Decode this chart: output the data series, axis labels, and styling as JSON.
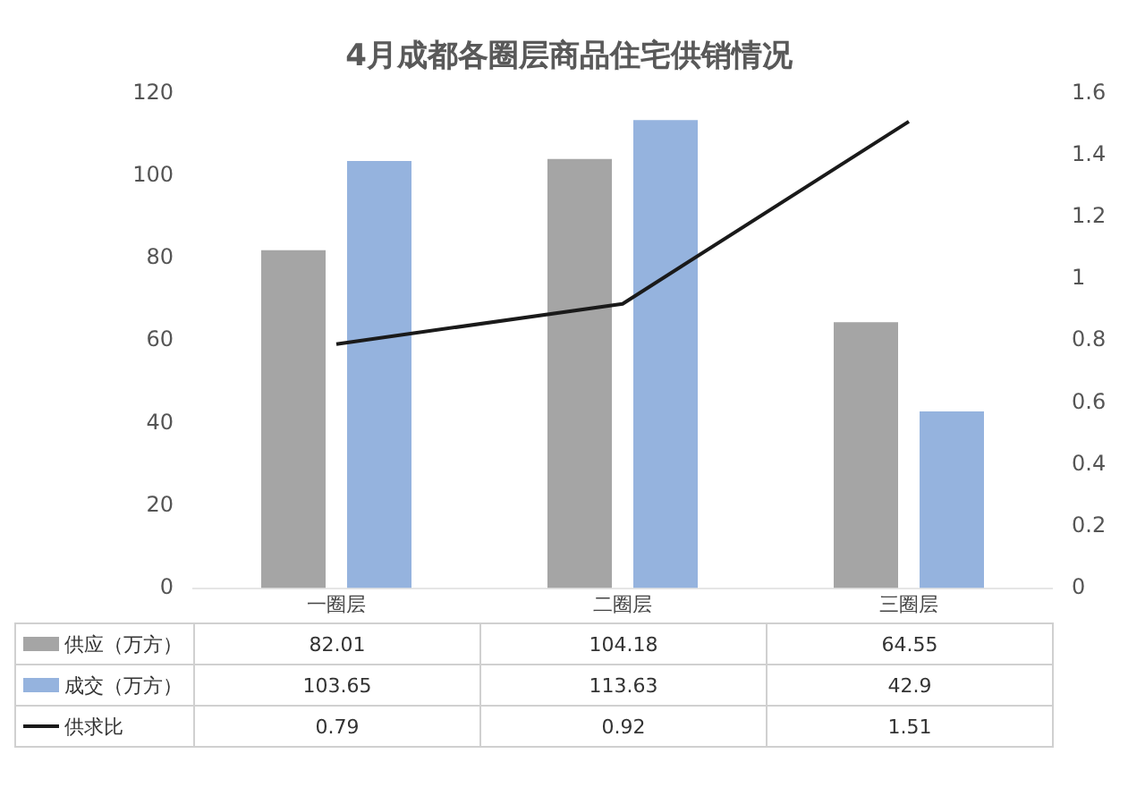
{
  "chart_data": {
    "type": "bar",
    "title": "4月成都各圈层商品住宅供销情况",
    "categories": [
      "一圈层",
      "二圈层",
      "三圈层"
    ],
    "series": [
      {
        "name": "供应（万方）",
        "color": "#a5a5a5",
        "values": [
          82.01,
          104.18,
          64.55
        ]
      },
      {
        "name": "成交（万方）",
        "color": "#95b3de",
        "values": [
          103.65,
          113.63,
          42.9
        ]
      },
      {
        "name": "供求比",
        "color": "#1a1a1a",
        "type": "line",
        "axis": "y2",
        "marker": "none",
        "values": [
          0.79,
          0.92,
          1.51
        ]
      }
    ],
    "ylim": [
      0,
      120
    ],
    "yticks": [
      0,
      20,
      40,
      60,
      80,
      100,
      120
    ],
    "y2lim": [
      0,
      1.6
    ],
    "y2ticks": [
      0,
      0.2,
      0.4,
      0.6,
      0.8,
      1,
      1.2,
      1.4,
      1.6
    ],
    "data_labels": true,
    "legend": "bottom"
  }
}
